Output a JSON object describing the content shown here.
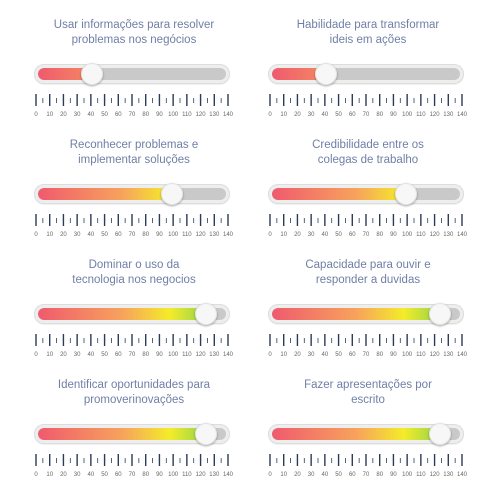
{
  "colors": {
    "title": "#6f7fa6",
    "tick": "#2b3a5c",
    "track_empty": "#c9c9c9",
    "gradient": [
      "#f05a6e",
      "#f7a35c",
      "#f4ec2a",
      "#8fd24b"
    ]
  },
  "scale": {
    "min": 0,
    "max": 140,
    "labels": [
      "0",
      "10",
      "20",
      "30",
      "40",
      "50",
      "60",
      "70",
      "80",
      "90",
      "100",
      "110",
      "120",
      "130",
      "140"
    ]
  },
  "sliders": [
    {
      "label_line1": "Usar informações para resolver",
      "label_line2": "problemas nos negócios",
      "value": 40
    },
    {
      "label_line1": "Habilidade para transformar",
      "label_line2": "ideis em ações",
      "value": 40
    },
    {
      "label_line1": "Reconhecer problemas e",
      "label_line2": "implementar soluções",
      "value": 100
    },
    {
      "label_line1": "Credibilidade entre os",
      "label_line2": "colegas de trabalho",
      "value": 100
    },
    {
      "label_line1": "Dominar o uso da",
      "label_line2": "tecnologia nos negocios",
      "value": 125
    },
    {
      "label_line1": "Capacidade para ouvir e",
      "label_line2": "responder a duvidas",
      "value": 125
    },
    {
      "label_line1": "Identificar oportunidades para",
      "label_line2": "promoverinovações",
      "value": 125
    },
    {
      "label_line1": "Fazer apresentações por",
      "label_line2": "escrito",
      "value": 125
    }
  ]
}
